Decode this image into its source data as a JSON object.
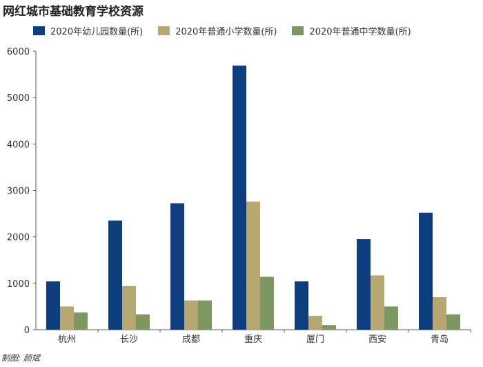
{
  "title": "网红城市基础教育学校资源",
  "credit": "制图: 颜斌",
  "chart_data": {
    "type": "bar",
    "title": "网红城市基础教育学校资源",
    "xlabel": "",
    "ylabel": "",
    "categories": [
      "杭州",
      "长沙",
      "成都",
      "重庆",
      "厦门",
      "西安",
      "青岛"
    ],
    "ylim": [
      0,
      6000
    ],
    "yticks": [
      0,
      1000,
      2000,
      3000,
      4000,
      5000,
      6000
    ],
    "grid": false,
    "legend_position": "top",
    "series": [
      {
        "name": "2020年幼儿园数量(所)",
        "color": "#0e3e7e",
        "values": [
          1040,
          2350,
          2720,
          5690,
          1040,
          1950,
          2520
        ]
      },
      {
        "name": "2020年普通小学数量(所)",
        "color": "#b6a773",
        "values": [
          500,
          940,
          630,
          2760,
          300,
          1170,
          700
        ]
      },
      {
        "name": "2020年普通中学数量(所)",
        "color": "#7d9763",
        "values": [
          370,
          330,
          630,
          1140,
          100,
          500,
          330
        ]
      }
    ]
  }
}
